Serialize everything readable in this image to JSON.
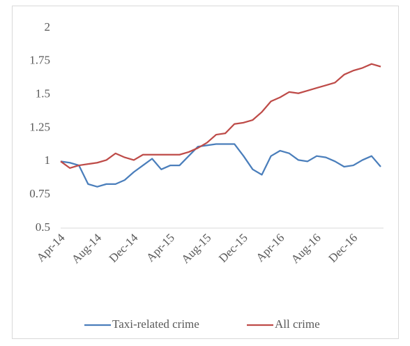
{
  "chart_data": {
    "type": "line",
    "categories": [
      "Apr-14",
      null,
      null,
      null,
      "Aug-14",
      null,
      null,
      null,
      "Dec-14",
      null,
      null,
      null,
      "Apr-15",
      null,
      null,
      null,
      "Aug-15",
      null,
      null,
      null,
      "Dec-15",
      null,
      null,
      null,
      "Apr-16",
      null,
      null,
      null,
      "Aug-16",
      null,
      null,
      null,
      "Dec-16",
      null,
      null,
      null
    ],
    "series": [
      {
        "name": "Taxi-related crime",
        "color": "#4a7ebb",
        "values": [
          1.0,
          0.99,
          0.97,
          0.83,
          0.81,
          0.83,
          0.83,
          0.86,
          0.92,
          0.97,
          1.02,
          0.94,
          0.97,
          0.97,
          1.04,
          1.11,
          1.12,
          1.13,
          1.13,
          1.13,
          1.04,
          0.94,
          0.9,
          1.04,
          1.08,
          1.06,
          1.01,
          1.0,
          1.04,
          1.03,
          1.0,
          0.96,
          0.97,
          1.01,
          1.04,
          0.96
        ]
      },
      {
        "name": "All crime",
        "color": "#be4b48",
        "values": [
          1.0,
          0.95,
          0.97,
          0.98,
          0.99,
          1.01,
          1.06,
          1.03,
          1.01,
          1.05,
          1.05,
          1.05,
          1.05,
          1.05,
          1.07,
          1.1,
          1.14,
          1.2,
          1.21,
          1.28,
          1.29,
          1.31,
          1.37,
          1.45,
          1.48,
          1.52,
          1.51,
          1.53,
          1.55,
          1.57,
          1.59,
          1.65,
          1.68,
          1.7,
          1.73,
          1.71
        ]
      }
    ],
    "ylim": [
      0.5,
      2
    ],
    "yticks": [
      0.5,
      0.75,
      1,
      1.25,
      1.5,
      1.75,
      2
    ],
    "grid": false,
    "legend": "bottom"
  }
}
